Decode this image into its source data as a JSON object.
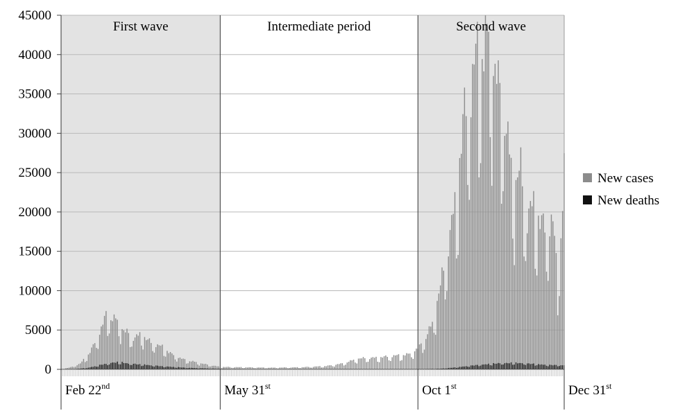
{
  "chart_data": {
    "type": "bar",
    "stacked": false,
    "ylim": [
      0,
      45000
    ],
    "yticks": [
      0,
      5000,
      10000,
      15000,
      20000,
      25000,
      30000,
      35000,
      40000,
      45000
    ],
    "grid": true,
    "legend_position": "right",
    "x_start": "2020-02-22",
    "x_end": "2020-12-31",
    "periods": [
      {
        "label": "First wave",
        "start": "2020-02-22",
        "end": "2020-05-31",
        "shaded": true
      },
      {
        "label": "Intermediate period",
        "start": "2020-05-31",
        "end": "2020-10-01",
        "shaded": false
      },
      {
        "label": "Second wave",
        "start": "2020-10-01",
        "end": "2020-12-31",
        "shaded": true
      }
    ],
    "date_labels": [
      {
        "main": "Feb 22",
        "sup": "nd",
        "date": "2020-02-22"
      },
      {
        "main": "May 31",
        "sup": "st",
        "date": "2020-05-31"
      },
      {
        "main": "Oct 1",
        "sup": "st",
        "date": "2020-10-01"
      },
      {
        "main": "Dec 31",
        "sup": "st",
        "date": "2020-12-31"
      }
    ],
    "series": [
      {
        "name": "New cases",
        "color": "#8c8c8c",
        "anchors": [
          [
            "2020-02-22",
            20
          ],
          [
            "2020-02-28",
            250
          ],
          [
            "2020-03-05",
            700
          ],
          [
            "2020-03-10",
            1800
          ],
          [
            "2020-03-15",
            3500
          ],
          [
            "2020-03-21",
            6500
          ],
          [
            "2020-03-27",
            6000
          ],
          [
            "2020-04-01",
            4700
          ],
          [
            "2020-04-07",
            3800
          ],
          [
            "2020-04-12",
            4200
          ],
          [
            "2020-04-18",
            3200
          ],
          [
            "2020-04-25",
            2700
          ],
          [
            "2020-05-01",
            1800
          ],
          [
            "2020-05-08",
            1200
          ],
          [
            "2020-05-15",
            900
          ],
          [
            "2020-05-22",
            600
          ],
          [
            "2020-05-31",
            300
          ],
          [
            "2020-06-15",
            250
          ],
          [
            "2020-07-01",
            200
          ],
          [
            "2020-07-20",
            250
          ],
          [
            "2020-08-05",
            400
          ],
          [
            "2020-08-15",
            700
          ],
          [
            "2020-08-25",
            1300
          ],
          [
            "2020-09-05",
            1400
          ],
          [
            "2020-09-15",
            1600
          ],
          [
            "2020-09-25",
            1800
          ],
          [
            "2020-10-01",
            2500
          ],
          [
            "2020-10-05",
            3500
          ],
          [
            "2020-10-10",
            5500
          ],
          [
            "2020-10-15",
            10000
          ],
          [
            "2020-10-20",
            15000
          ],
          [
            "2020-10-25",
            21000
          ],
          [
            "2020-10-30",
            31000
          ],
          [
            "2020-11-03",
            33000
          ],
          [
            "2020-11-07",
            39000
          ],
          [
            "2020-11-11",
            37500
          ],
          [
            "2020-11-14",
            41000
          ],
          [
            "2020-11-18",
            35000
          ],
          [
            "2020-11-22",
            33000
          ],
          [
            "2020-11-26",
            27000
          ],
          [
            "2020-11-30",
            22000
          ],
          [
            "2020-12-04",
            24000
          ],
          [
            "2020-12-08",
            18000
          ],
          [
            "2020-12-12",
            20000
          ],
          [
            "2020-12-16",
            17500
          ],
          [
            "2020-12-20",
            17000
          ],
          [
            "2020-12-24",
            17500
          ],
          [
            "2020-12-27",
            11000
          ],
          [
            "2020-12-29",
            16000
          ],
          [
            "2020-12-31",
            23500
          ]
        ]
      },
      {
        "name": "New deaths",
        "color": "#111111",
        "anchors": [
          [
            "2020-02-22",
            0
          ],
          [
            "2020-03-01",
            20
          ],
          [
            "2020-03-10",
            200
          ],
          [
            "2020-03-20",
            650
          ],
          [
            "2020-03-28",
            900
          ],
          [
            "2020-04-05",
            700
          ],
          [
            "2020-04-15",
            550
          ],
          [
            "2020-04-25",
            380
          ],
          [
            "2020-05-10",
            200
          ],
          [
            "2020-05-31",
            70
          ],
          [
            "2020-07-01",
            20
          ],
          [
            "2020-08-15",
            10
          ],
          [
            "2020-09-15",
            20
          ],
          [
            "2020-10-01",
            25
          ],
          [
            "2020-10-15",
            80
          ],
          [
            "2020-10-25",
            250
          ],
          [
            "2020-11-05",
            500
          ],
          [
            "2020-11-20",
            750
          ],
          [
            "2020-12-01",
            800
          ],
          [
            "2020-12-10",
            700
          ],
          [
            "2020-12-20",
            550
          ],
          [
            "2020-12-31",
            500
          ]
        ]
      }
    ]
  }
}
